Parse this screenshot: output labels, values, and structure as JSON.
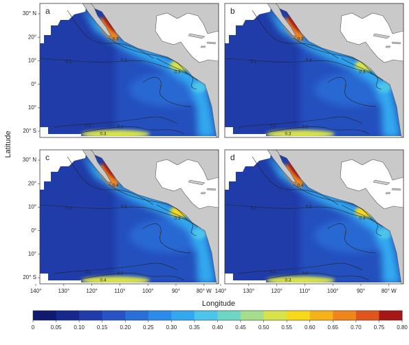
{
  "panels": [
    {
      "label": "a",
      "contour_labels": [
        "0.3",
        "0.1",
        "0.2",
        "0.3",
        "0.1",
        "0.2",
        "0.3"
      ]
    },
    {
      "label": "b",
      "contour_labels": [
        "0.3",
        "0.1",
        "0.2",
        "0.3",
        "0.1",
        "0.2",
        "0.3"
      ]
    },
    {
      "label": "c",
      "contour_labels": [
        "0.4",
        "0.1",
        "0.3",
        "0.3",
        "0.1",
        "0.2",
        "0.4"
      ]
    },
    {
      "label": "d",
      "contour_labels": [
        "0.4",
        "0.1",
        "0.2",
        "0.3",
        "0.1",
        "0.2",
        "0.3"
      ]
    }
  ],
  "y_label": "Latitude",
  "x_label": "Longitude",
  "lat_ticks": [
    {
      "value": 30,
      "label": "30° N"
    },
    {
      "value": 20,
      "label": "20°"
    },
    {
      "value": 10,
      "label": "10°"
    },
    {
      "value": 0,
      "label": "0°"
    },
    {
      "value": -10,
      "label": "10°"
    },
    {
      "value": -20,
      "label": "20° S"
    }
  ],
  "lon_ticks": [
    {
      "value": -140,
      "label": "140°"
    },
    {
      "value": -130,
      "label": "130°"
    },
    {
      "value": -120,
      "label": "120°"
    },
    {
      "value": -110,
      "label": "110°"
    },
    {
      "value": -100,
      "label": "100°"
    },
    {
      "value": -90,
      "label": "90°"
    },
    {
      "value": -80,
      "label": "80° W"
    }
  ],
  "colorbar": {
    "lim": [
      0,
      0.8
    ],
    "ticks": [
      0,
      0.05,
      {
        "value": 0.1,
        "label": "0.10"
      },
      0.15,
      {
        "value": 0.2,
        "label": "0.20"
      },
      0.25,
      {
        "value": 0.3,
        "label": "0.30"
      },
      0.35,
      {
        "value": 0.4,
        "label": "0.40"
      },
      0.45,
      {
        "value": 0.5,
        "label": "0.50"
      },
      0.55,
      {
        "value": 0.6,
        "label": "0.60"
      },
      0.65,
      {
        "value": 0.7,
        "label": "0.70"
      },
      0.75,
      {
        "value": 0.8,
        "label": "0.80"
      }
    ],
    "colors": [
      "#0d1a6e",
      "#15288c",
      "#1f3ca8",
      "#2654c4",
      "#2a6ed8",
      "#2c8ae8",
      "#33a8ef",
      "#4dc4ea",
      "#6fd6c4",
      "#a4de8c",
      "#d8e24a",
      "#f7d81a",
      "#f6b21a",
      "#ee861c",
      "#e0541e",
      "#a81717"
    ]
  }
}
